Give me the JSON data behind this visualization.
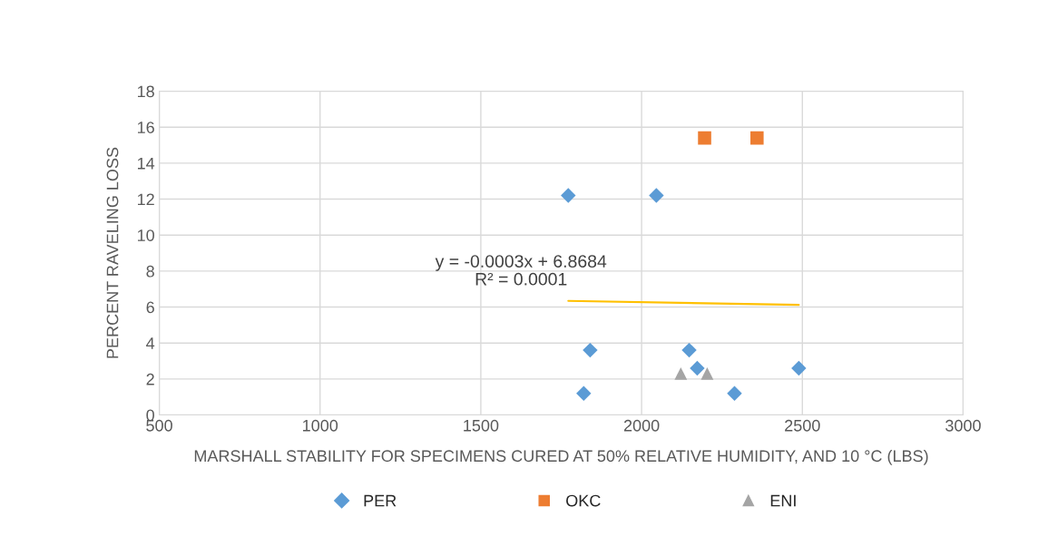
{
  "chart_data": {
    "type": "scatter",
    "xlabel": "MARSHALL STABILITY FOR SPECIMENS CURED AT 50% RELATIVE HUMIDITY, AND 10 °C (LBS)",
    "ylabel": "PERCENT RAVELING LOSS",
    "series": [
      {
        "name": "PER",
        "color": "#5b9bd5",
        "marker": "diamond",
        "x": [
          1772,
          2046,
          1840,
          1820,
          2148,
          2173,
          2289,
          2489
        ],
        "values": [
          12.2,
          12.2,
          3.6,
          1.2,
          3.6,
          2.6,
          1.2,
          2.6
        ]
      },
      {
        "name": "OKC",
        "color": "#ed7d31",
        "marker": "square",
        "x": [
          2196,
          2359
        ],
        "values": [
          15.4,
          15.4
        ]
      },
      {
        "name": "ENI",
        "color": "#a5a5a5",
        "marker": "triangle",
        "x": [
          2122,
          2204
        ],
        "values": [
          2.3,
          2.3
        ]
      },
      {
        "type": "line",
        "color": "#ffc000",
        "marker": "none",
        "x": [
          1772,
          2489
        ],
        "values": [
          6.34,
          6.12
        ]
      }
    ],
    "annotations": [
      "y = -0.0003x + 6.8684",
      "R² = 0.0001"
    ],
    "xlim": [
      500,
      3000
    ],
    "xticks": [
      500,
      1000,
      1500,
      2000,
      2500,
      3000
    ],
    "ylim": [
      0,
      18
    ],
    "yticks": [
      0,
      2,
      4,
      6,
      8,
      10,
      12,
      14,
      16,
      18
    ],
    "grid": true,
    "legend": "bottom"
  }
}
